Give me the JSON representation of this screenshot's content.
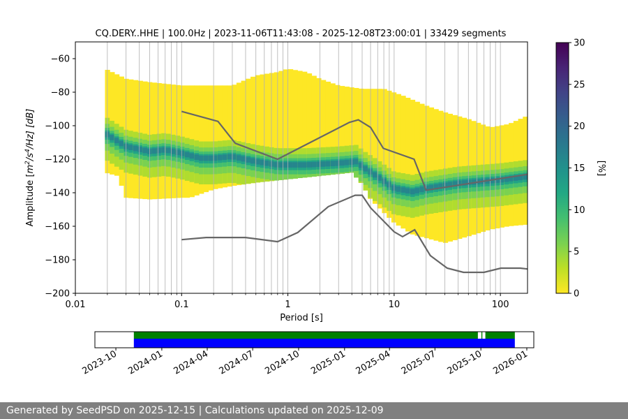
{
  "chart_data": {
    "type": "heatmap",
    "title": "CQ.DERY..HHE | 100.0Hz | 2023-11-06T11:43:08 - 2025-12-08T23:00:01 | 33429 segments",
    "xlabel": "Period [s]",
    "ylabel_parts": [
      "Amplitude [",
      "m",
      "2",
      "/",
      "s",
      "4",
      "/Hz] [dB]"
    ],
    "x_scale": "log",
    "xlim": [
      0.01,
      180
    ],
    "ylim": [
      -200,
      -50
    ],
    "x_ticks": [
      {
        "value": 0.01,
        "label": "0.01"
      },
      {
        "value": 0.1,
        "label": "0.1"
      },
      {
        "value": 1,
        "label": "1"
      },
      {
        "value": 10,
        "label": "10"
      },
      {
        "value": 100,
        "label": "100"
      }
    ],
    "y_ticks": [
      {
        "value": -60,
        "label": "−60"
      },
      {
        "value": -80,
        "label": "−80"
      },
      {
        "value": -100,
        "label": "−100"
      },
      {
        "value": -120,
        "label": "−120"
      },
      {
        "value": -140,
        "label": "−140"
      },
      {
        "value": -160,
        "label": "−160"
      },
      {
        "value": -180,
        "label": "−180"
      },
      {
        "value": -200,
        "label": "−200"
      }
    ],
    "grid": "x-only",
    "colorbar": {
      "label": "[%]",
      "range": [
        0,
        30
      ],
      "colormap": "viridis",
      "ticks": [
        {
          "value": 0,
          "label": "0"
        },
        {
          "value": 5,
          "label": "5"
        },
        {
          "value": 10,
          "label": "10"
        },
        {
          "value": 15,
          "label": "15"
        },
        {
          "value": 20,
          "label": "20"
        },
        {
          "value": 25,
          "label": "25"
        },
        {
          "value": 30,
          "label": "30"
        }
      ]
    },
    "psd_distribution": {
      "period_range": [
        0.019,
        180
      ],
      "envelope_upper": [
        [
          0.019,
          -66
        ],
        [
          0.03,
          -72
        ],
        [
          0.05,
          -74
        ],
        [
          0.1,
          -76
        ],
        [
          0.2,
          -76
        ],
        [
          0.3,
          -76
        ],
        [
          0.5,
          -70
        ],
        [
          0.8,
          -68
        ],
        [
          1,
          -66
        ],
        [
          1.5,
          -68
        ],
        [
          2,
          -72
        ],
        [
          3,
          -76
        ],
        [
          5,
          -78
        ],
        [
          8,
          -78
        ],
        [
          12,
          -82
        ],
        [
          20,
          -88
        ],
        [
          30,
          -92
        ],
        [
          50,
          -96
        ],
        [
          80,
          -101
        ],
        [
          120,
          -99
        ],
        [
          180,
          -94
        ]
      ],
      "envelope_lower": [
        [
          0.019,
          -128
        ],
        [
          0.025,
          -130
        ],
        [
          0.03,
          -143
        ],
        [
          0.05,
          -144
        ],
        [
          0.1,
          -143
        ],
        [
          0.12,
          -143
        ],
        [
          0.2,
          -138
        ],
        [
          0.3,
          -136
        ],
        [
          0.5,
          -134
        ],
        [
          1,
          -132
        ],
        [
          2,
          -130
        ],
        [
          4,
          -128
        ],
        [
          5,
          -135
        ],
        [
          6,
          -144
        ],
        [
          10,
          -158
        ],
        [
          15,
          -165
        ],
        [
          30,
          -170
        ],
        [
          50,
          -166
        ],
        [
          80,
          -162
        ],
        [
          120,
          -160
        ],
        [
          180,
          -159
        ]
      ],
      "mode_line": [
        [
          0.019,
          -104
        ],
        [
          0.03,
          -112
        ],
        [
          0.05,
          -115
        ],
        [
          0.07,
          -114
        ],
        [
          0.1,
          -116
        ],
        [
          0.15,
          -119
        ],
        [
          0.2,
          -119
        ],
        [
          0.3,
          -118
        ],
        [
          0.5,
          -121
        ],
        [
          0.8,
          -123
        ],
        [
          1.5,
          -123
        ],
        [
          3,
          -122
        ],
        [
          4.5,
          -121
        ],
        [
          5,
          -124
        ],
        [
          7,
          -130
        ],
        [
          10,
          -137
        ],
        [
          15,
          -139
        ],
        [
          20,
          -137
        ],
        [
          40,
          -134
        ],
        [
          100,
          -132
        ],
        [
          180,
          -130
        ]
      ],
      "mode_width_db": 6
    },
    "noise_models": [
      {
        "points": [
          [
            0.1,
            -91.5
          ],
          [
            0.22,
            -97.4
          ],
          [
            0.32,
            -110.5
          ],
          [
            0.8,
            -120
          ],
          [
            3.8,
            -98
          ],
          [
            4.6,
            -96.5
          ],
          [
            6,
            -101
          ],
          [
            7.9,
            -113.5
          ],
          [
            15.4,
            -120
          ],
          [
            20,
            -138.5
          ],
          [
            180,
            -129
          ]
        ]
      },
      {
        "points": [
          [
            0.1,
            -168
          ],
          [
            0.17,
            -166.7
          ],
          [
            0.4,
            -166.7
          ],
          [
            0.8,
            -169.2
          ],
          [
            1.24,
            -163.7
          ],
          [
            2.4,
            -148.3
          ],
          [
            4.3,
            -141.5
          ],
          [
            5,
            -141.5
          ],
          [
            6,
            -149
          ],
          [
            10,
            -163.3
          ],
          [
            12,
            -166.2
          ],
          [
            15.6,
            -162.1
          ],
          [
            21.9,
            -177.5
          ],
          [
            31.6,
            -185
          ],
          [
            45,
            -187.5
          ],
          [
            70,
            -187.5
          ],
          [
            101,
            -185
          ],
          [
            154,
            -185
          ],
          [
            180,
            -185.5
          ]
        ]
      }
    ],
    "timeline": {
      "date_ticks": [
        "2023-10",
        "2024-01",
        "2024-04",
        "2024-07",
        "2024-10",
        "2025-01",
        "2025-04",
        "2025-07",
        "2025-10",
        "2026-01"
      ],
      "range": [
        "2023-08-20",
        "2026-01-15"
      ],
      "data_coverage": {
        "color": "#008000",
        "start": "2023-11-06",
        "end": "2025-12-08",
        "gaps": [
          [
            "2025-09-25",
            "2025-10-02"
          ],
          [
            "2025-10-04",
            "2025-10-10"
          ]
        ]
      },
      "psd_coverage": {
        "color": "#0000ff",
        "start": "2023-11-06",
        "end": "2025-12-08"
      }
    }
  },
  "footer": {
    "text": "Generated by SeedPSD on 2025-12-15 | Calculations updated on 2025-12-09"
  }
}
